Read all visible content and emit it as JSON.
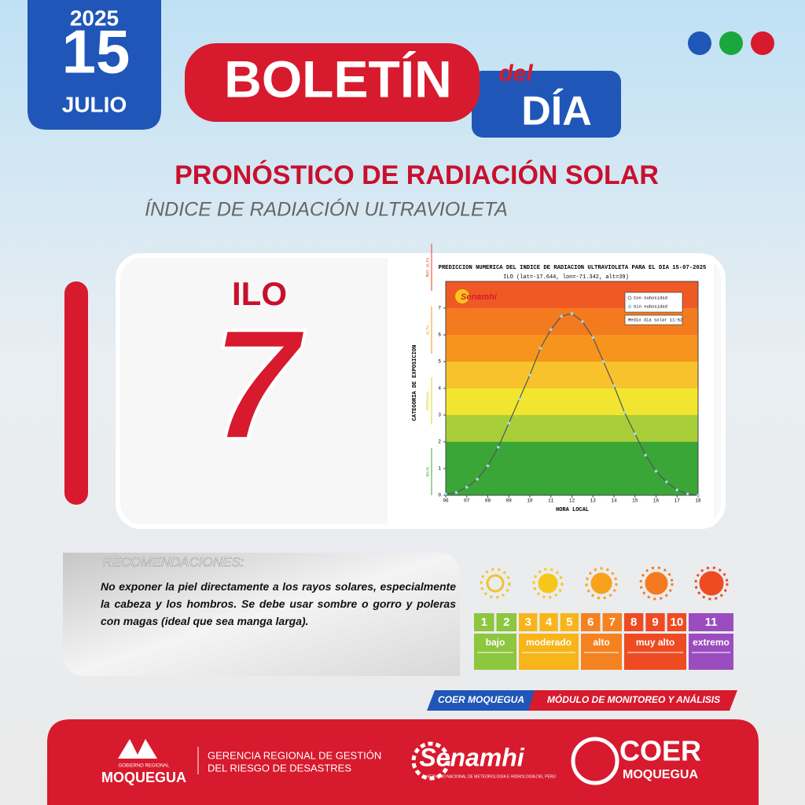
{
  "header": {
    "year": "2025",
    "day": "15",
    "month": "JULIO",
    "title": "BOLETÍN",
    "title_small": "del",
    "title_big": "DÍA"
  },
  "heading": "PRONÓSTICO DE RADIACIÓN SOLAR",
  "subheading": "ÍNDICE DE RADIACIÓN ULTRAVIOLETA",
  "location": "ILO",
  "uv_index": "7",
  "chart_data": {
    "type": "line",
    "title": "PREDICCION NUMERICA DEL INDICE DE RADIACION ULTRAVIOLETA PARA EL DIA 15-07-2025",
    "subtitle": "ILO (lat=-17.644, lon=-71.342, alt=39)",
    "logo": "Senamhi",
    "x_label": "HORA LOCAL",
    "y_label": "CATEGORIA DE EXPOSICION",
    "category_labels": [
      "BAJA",
      "MODERADA",
      "ALTA",
      "MUY ALTA"
    ],
    "x": [
      6,
      6.5,
      7,
      7.5,
      8,
      8.5,
      9,
      9.5,
      10,
      10.5,
      11,
      11.5,
      12,
      12.5,
      13,
      13.5,
      14,
      14.5,
      15,
      15.5,
      16,
      16.5,
      17,
      17.5,
      18
    ],
    "series": [
      {
        "name": "Con nubosidad",
        "color": "#555555",
        "values": [
          0.05,
          0.1,
          0.3,
          0.6,
          1.1,
          1.8,
          2.7,
          3.6,
          4.5,
          5.5,
          6.2,
          6.7,
          6.8,
          6.5,
          5.9,
          5.0,
          4.1,
          3.1,
          2.3,
          1.5,
          0.9,
          0.5,
          0.2,
          0.05,
          0
        ]
      },
      {
        "name": "Sin nubosidad",
        "color": "#9fd8f5",
        "values": [
          0.05,
          0.1,
          0.3,
          0.6,
          1.1,
          1.8,
          2.7,
          3.6,
          4.5,
          5.5,
          6.2,
          6.7,
          6.8,
          6.5,
          5.9,
          5.0,
          4.1,
          3.1,
          2.3,
          1.5,
          0.9,
          0.5,
          0.2,
          0.05,
          0
        ]
      }
    ],
    "note": "Medio dia solar  11:52",
    "xlim": [
      6,
      18
    ],
    "ylim": [
      0,
      8
    ],
    "xticks": [
      {
        "value": 6,
        "label": "06"
      },
      {
        "value": 7,
        "label": "07"
      },
      {
        "value": 8,
        "label": "08"
      },
      {
        "value": 9,
        "label": "09"
      },
      10,
      11,
      12,
      13,
      14,
      15,
      16,
      17,
      18
    ],
    "yticks": [
      0,
      1,
      2,
      3,
      4,
      5,
      6,
      7
    ],
    "band_colors": [
      "#3aa637",
      "#3aa637",
      "#a8cf3a",
      "#f2e52f",
      "#f8c22c",
      "#f7941d",
      "#f47a20",
      "#ef5a24"
    ]
  },
  "recommendations": {
    "title": "RECOMENDACIONES:",
    "text": "No exponer la piel directamente a los rayos solares, especialmente la cabeza y los hombros. Se debe usar sombre o gorro y poleras con magas (ideal que sea manga larga)."
  },
  "uv_scale": [
    {
      "name": "bajo",
      "numbers": [
        "1",
        "2"
      ],
      "color": "#8dc63f"
    },
    {
      "name": "moderado",
      "numbers": [
        "3",
        "4",
        "5"
      ],
      "color": "#f7b519"
    },
    {
      "name": "alto",
      "numbers": [
        "6",
        "7"
      ],
      "color": "#f58220"
    },
    {
      "name": "muy alto",
      "numbers": [
        "8",
        "9",
        "10"
      ],
      "color": "#ee4b23"
    },
    {
      "name": "extremo",
      "numbers": [
        "11"
      ],
      "color": "#9b4dbf"
    }
  ],
  "tag": {
    "left": "COER MOQUEGUA",
    "right": "MÓDULO DE MONITOREO Y ANÁLISIS"
  },
  "footer": {
    "gob_small": "GOBIERNO REGIONAL",
    "gob": "MOQUEGUA",
    "gerencia_1": "GERENCIA REGIONAL DE GESTIÓN",
    "gerencia_2": "DEL RIESGO DE DESASTRES",
    "senamhi": "Senamhi",
    "senamhi_sub": "SERVICIO NACIONAL DE METEOROLOGÍA E HIDROLOGÍA DEL PERÚ",
    "coer": "COER",
    "coer_sub": "MOQUEGUA"
  }
}
